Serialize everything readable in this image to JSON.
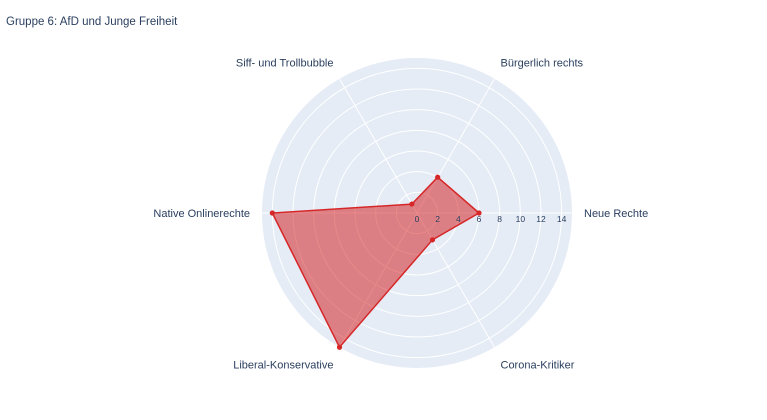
{
  "chart_data": {
    "type": "radar",
    "title": "Gruppe 6: AfD und Junge Freiheit",
    "categories": [
      "Neue Rechte",
      "Bürgerlich rechts",
      "Siff- und Trollbubble",
      "Native Onlinerechte",
      "Liberal-Konservative",
      "Corona-Kritiker"
    ],
    "series": [
      {
        "values": [
          6,
          4,
          1,
          14,
          15,
          3
        ]
      }
    ],
    "radial_range": [
      0,
      15
    ],
    "radial_ticks": [
      0,
      2,
      4,
      6,
      8,
      10,
      12,
      14
    ],
    "grid": true,
    "colors": {
      "polar_bg": "#e5ecf6",
      "grid": "#ffffff",
      "series_line": "#d62728",
      "series_fill": "rgba(214,39,40,0.55)"
    }
  }
}
